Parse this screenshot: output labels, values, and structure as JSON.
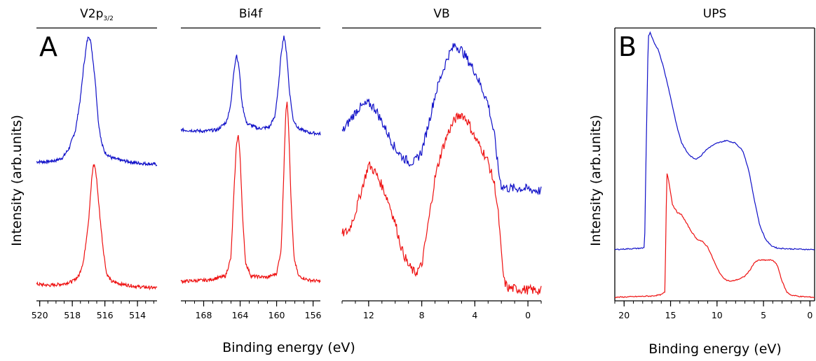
{
  "figure": {
    "ylabel_left": "Intensity (arb.units)",
    "ylabel_right": "Intensity (arb.units)",
    "xlabel_left": "Binding energy (eV)",
    "xlabel_right": "Binding energy (eV)",
    "panel_a": "A",
    "panel_b": "B",
    "series_colors": [
      "#1010c8",
      "#ee1111"
    ]
  },
  "chart_data": [
    {
      "type": "line",
      "title": "V2p",
      "title_sub": "3/2",
      "xlim": [
        520.2,
        512.8
      ],
      "x_ticks": [
        520,
        518,
        516,
        514
      ],
      "x_tick_labels": [
        "520",
        "518",
        "516",
        "514"
      ],
      "series": [
        {
          "color": "#1010c8",
          "points": [
            [
              520.2,
              0.51
            ],
            [
              519.6,
              0.51
            ],
            [
              519.0,
              0.515
            ],
            [
              518.6,
              0.525
            ],
            [
              518.2,
              0.56
            ],
            [
              517.8,
              0.63
            ],
            [
              517.5,
              0.75
            ],
            [
              517.3,
              0.87
            ],
            [
              517.1,
              0.96
            ],
            [
              517.0,
              0.985
            ],
            [
              516.9,
              0.97
            ],
            [
              516.8,
              0.93
            ],
            [
              516.6,
              0.82
            ],
            [
              516.4,
              0.66
            ],
            [
              516.2,
              0.58
            ],
            [
              516.0,
              0.545
            ],
            [
              515.6,
              0.525
            ],
            [
              515.0,
              0.515
            ],
            [
              514.0,
              0.505
            ],
            [
              512.8,
              0.5
            ]
          ]
        },
        {
          "color": "#ee1111",
          "points": [
            [
              520.2,
              0.05
            ],
            [
              519.4,
              0.045
            ],
            [
              518.6,
              0.05
            ],
            [
              518.0,
              0.06
            ],
            [
              517.6,
              0.08
            ],
            [
              517.3,
              0.14
            ],
            [
              517.0,
              0.29
            ],
            [
              516.8,
              0.45
            ],
            [
              516.7,
              0.5
            ],
            [
              516.6,
              0.49
            ],
            [
              516.5,
              0.44
            ],
            [
              516.3,
              0.3
            ],
            [
              516.1,
              0.18
            ],
            [
              515.9,
              0.09
            ],
            [
              515.6,
              0.06
            ],
            [
              515.0,
              0.05
            ],
            [
              514.0,
              0.04
            ],
            [
              512.8,
              0.035
            ]
          ]
        }
      ]
    },
    {
      "type": "line",
      "title": "Bi4f",
      "xlim": [
        170.5,
        155.2
      ],
      "x_ticks": [
        168,
        164,
        160,
        156
      ],
      "x_tick_labels": [
        "168",
        "164",
        "160",
        "156"
      ],
      "series": [
        {
          "color": "#1010c8",
          "points": [
            [
              170.5,
              0.63
            ],
            [
              168.0,
              0.625
            ],
            [
              166.5,
              0.63
            ],
            [
              165.5,
              0.66
            ],
            [
              165.0,
              0.73
            ],
            [
              164.7,
              0.85
            ],
            [
              164.4,
              0.915
            ],
            [
              164.1,
              0.86
            ],
            [
              163.8,
              0.73
            ],
            [
              163.3,
              0.655
            ],
            [
              162.0,
              0.635
            ],
            [
              160.8,
              0.64
            ],
            [
              160.2,
              0.68
            ],
            [
              159.8,
              0.79
            ],
            [
              159.5,
              0.92
            ],
            [
              159.2,
              0.985
            ],
            [
              158.9,
              0.92
            ],
            [
              158.6,
              0.78
            ],
            [
              158.2,
              0.67
            ],
            [
              157.6,
              0.635
            ],
            [
              156.5,
              0.62
            ],
            [
              155.2,
              0.615
            ]
          ]
        },
        {
          "color": "#ee1111",
          "points": [
            [
              170.5,
              0.06
            ],
            [
              167.5,
              0.065
            ],
            [
              165.6,
              0.08
            ],
            [
              165.0,
              0.15
            ],
            [
              164.7,
              0.38
            ],
            [
              164.4,
              0.58
            ],
            [
              164.2,
              0.61
            ],
            [
              164.0,
              0.53
            ],
            [
              163.7,
              0.28
            ],
            [
              163.4,
              0.13
            ],
            [
              162.8,
              0.08
            ],
            [
              161.0,
              0.075
            ],
            [
              160.0,
              0.09
            ],
            [
              159.5,
              0.18
            ],
            [
              159.2,
              0.48
            ],
            [
              159.0,
              0.7
            ],
            [
              158.85,
              0.74
            ],
            [
              158.7,
              0.66
            ],
            [
              158.4,
              0.35
            ],
            [
              158.1,
              0.15
            ],
            [
              157.6,
              0.08
            ],
            [
              156.5,
              0.065
            ],
            [
              155.2,
              0.06
            ]
          ]
        }
      ]
    },
    {
      "type": "line",
      "title": "VB",
      "xlim": [
        14.0,
        -1.0
      ],
      "x_ticks": [
        12,
        8,
        4,
        0
      ],
      "x_tick_labels": [
        "12",
        "8",
        "4",
        "0"
      ],
      "series": [
        {
          "color": "#1010c8",
          "points": [
            [
              14.0,
              0.62
            ],
            [
              13.5,
              0.66
            ],
            [
              12.8,
              0.71
            ],
            [
              12.0,
              0.73
            ],
            [
              11.5,
              0.71
            ],
            [
              11.0,
              0.66
            ],
            [
              10.5,
              0.61
            ],
            [
              10.0,
              0.56
            ],
            [
              9.5,
              0.53
            ],
            [
              9.0,
              0.51
            ],
            [
              8.5,
              0.51
            ],
            [
              8.0,
              0.55
            ],
            [
              7.5,
              0.65
            ],
            [
              7.0,
              0.76
            ],
            [
              6.5,
              0.84
            ],
            [
              6.0,
              0.91
            ],
            [
              5.5,
              0.95
            ],
            [
              5.0,
              0.93
            ],
            [
              4.5,
              0.89
            ],
            [
              4.0,
              0.85
            ],
            [
              3.5,
              0.79
            ],
            [
              3.0,
              0.73
            ],
            [
              2.5,
              0.6
            ],
            [
              2.2,
              0.47
            ],
            [
              2.0,
              0.42
            ],
            [
              1.5,
              0.41
            ],
            [
              0.5,
              0.41
            ],
            [
              -1.0,
              0.4
            ]
          ]
        },
        {
          "color": "#ee1111",
          "points": [
            [
              14.0,
              0.24
            ],
            [
              13.5,
              0.25
            ],
            [
              13.0,
              0.32
            ],
            [
              12.5,
              0.41
            ],
            [
              12.0,
              0.5
            ],
            [
              11.5,
              0.47
            ],
            [
              11.0,
              0.42
            ],
            [
              10.5,
              0.36
            ],
            [
              10.0,
              0.28
            ],
            [
              9.5,
              0.18
            ],
            [
              9.0,
              0.12
            ],
            [
              8.5,
              0.09
            ],
            [
              8.0,
              0.12
            ],
            [
              7.5,
              0.28
            ],
            [
              7.0,
              0.45
            ],
            [
              6.5,
              0.55
            ],
            [
              6.0,
              0.62
            ],
            [
              5.5,
              0.67
            ],
            [
              5.0,
              0.69
            ],
            [
              4.5,
              0.66
            ],
            [
              4.0,
              0.6
            ],
            [
              3.5,
              0.56
            ],
            [
              3.0,
              0.51
            ],
            [
              2.5,
              0.42
            ],
            [
              2.2,
              0.3
            ],
            [
              2.0,
              0.16
            ],
            [
              1.8,
              0.06
            ],
            [
              1.5,
              0.035
            ],
            [
              0.5,
              0.03
            ],
            [
              -1.0,
              0.025
            ]
          ]
        }
      ]
    },
    {
      "type": "line",
      "title": "UPS",
      "xlim": [
        21.0,
        -0.5
      ],
      "x_ticks": [
        20,
        15,
        10,
        5,
        0
      ],
      "x_tick_labels": [
        "20",
        "15",
        "10",
        "5",
        "0"
      ],
      "series": [
        {
          "color": "#1010c8",
          "points": [
            [
              21.0,
              0.18
            ],
            [
              18.0,
              0.185
            ],
            [
              17.8,
              0.19
            ],
            [
              17.6,
              0.6
            ],
            [
              17.4,
              0.98
            ],
            [
              17.2,
              0.995
            ],
            [
              16.8,
              0.96
            ],
            [
              16.3,
              0.93
            ],
            [
              15.8,
              0.87
            ],
            [
              15.3,
              0.8
            ],
            [
              14.8,
              0.72
            ],
            [
              14.3,
              0.64
            ],
            [
              13.8,
              0.58
            ],
            [
              13.3,
              0.55
            ],
            [
              12.8,
              0.53
            ],
            [
              12.3,
              0.52
            ],
            [
              11.8,
              0.53
            ],
            [
              11.3,
              0.55
            ],
            [
              10.8,
              0.565
            ],
            [
              10.0,
              0.58
            ],
            [
              9.0,
              0.59
            ],
            [
              8.0,
              0.58
            ],
            [
              7.2,
              0.55
            ],
            [
              6.6,
              0.48
            ],
            [
              6.0,
              0.37
            ],
            [
              5.4,
              0.27
            ],
            [
              4.8,
              0.22
            ],
            [
              4.2,
              0.195
            ],
            [
              3.5,
              0.185
            ],
            [
              2.0,
              0.182
            ],
            [
              0.0,
              0.18
            ],
            [
              -0.5,
              0.18
            ]
          ]
        },
        {
          "color": "#ee1111",
          "points": [
            [
              21.0,
              0.0
            ],
            [
              17.0,
              0.005
            ],
            [
              16.0,
              0.01
            ],
            [
              15.6,
              0.02
            ],
            [
              15.5,
              0.25
            ],
            [
              15.4,
              0.47
            ],
            [
              15.2,
              0.44
            ],
            [
              14.8,
              0.35
            ],
            [
              14.3,
              0.32
            ],
            [
              13.8,
              0.31
            ],
            [
              13.3,
              0.28
            ],
            [
              12.8,
              0.25
            ],
            [
              12.2,
              0.22
            ],
            [
              11.6,
              0.21
            ],
            [
              11.0,
              0.19
            ],
            [
              10.5,
              0.15
            ],
            [
              10.0,
              0.11
            ],
            [
              9.5,
              0.08
            ],
            [
              9.0,
              0.065
            ],
            [
              8.5,
              0.06
            ],
            [
              8.0,
              0.065
            ],
            [
              7.5,
              0.07
            ],
            [
              7.0,
              0.08
            ],
            [
              6.5,
              0.1
            ],
            [
              6.0,
              0.13
            ],
            [
              5.5,
              0.14
            ],
            [
              5.0,
              0.14
            ],
            [
              4.5,
              0.14
            ],
            [
              4.0,
              0.14
            ],
            [
              3.5,
              0.12
            ],
            [
              3.0,
              0.06
            ],
            [
              2.5,
              0.02
            ],
            [
              2.0,
              0.008
            ],
            [
              1.0,
              0.003
            ],
            [
              -0.5,
              0.0
            ]
          ]
        }
      ]
    }
  ]
}
